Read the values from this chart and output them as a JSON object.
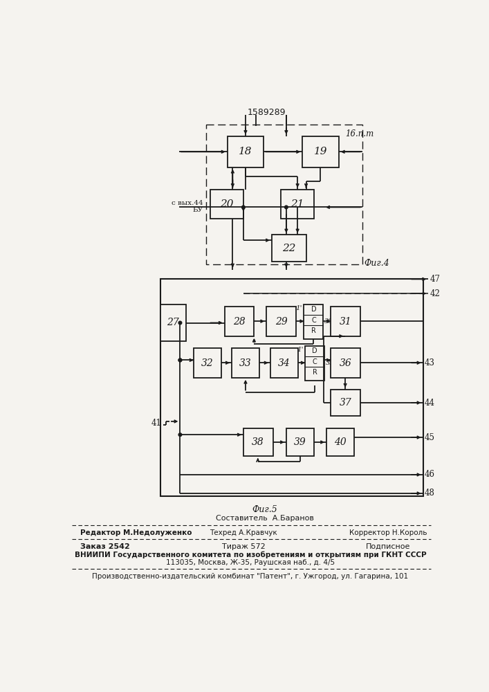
{
  "title": "1589289",
  "fig4_label": "Фиг.4",
  "fig5_label": "Фиг.5",
  "bg_color": "#f5f3ef",
  "line_color": "#1a1a1a",
  "box_fill": "#f5f3ef"
}
